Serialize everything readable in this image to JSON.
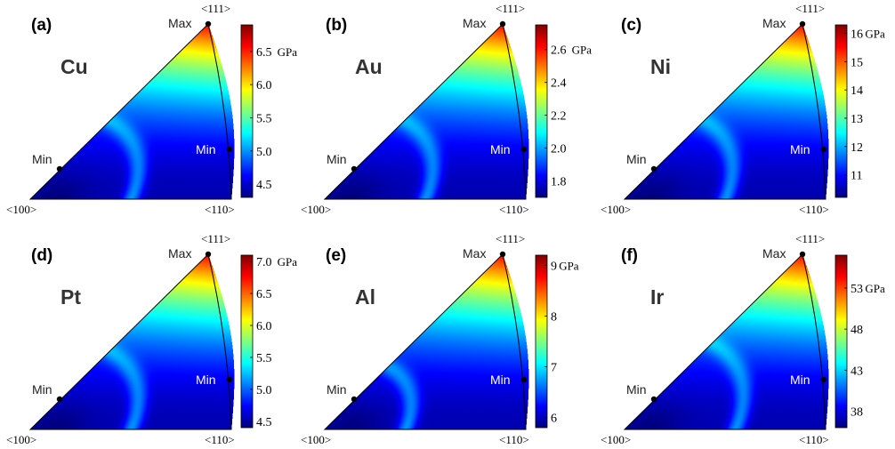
{
  "figure": {
    "dir_100": "<100>",
    "dir_110": "<110>",
    "dir_111": "<111>",
    "max_label": "Max",
    "min_label": "Min",
    "unit": "GPa",
    "colormap": [
      "#00007f",
      "#0000ff",
      "#007fff",
      "#00ffff",
      "#7fff7f",
      "#ffff00",
      "#ff7f00",
      "#ff0000",
      "#7f0000"
    ]
  },
  "chart_data": [
    {
      "type": "heatmap",
      "panel_label": "(a)",
      "element": "Cu",
      "range": [
        4.3,
        6.9
      ],
      "ticks": [
        4.5,
        5.0,
        5.5,
        6.0,
        6.5
      ],
      "tick_labels": [
        "4.5",
        "5.0",
        "5.5",
        "6.0",
        "6.5"
      ],
      "unit_at_tick": 4,
      "valley_position": 0.5
    },
    {
      "type": "heatmap",
      "panel_label": "(b)",
      "element": "Au",
      "range": [
        1.7,
        2.75
      ],
      "ticks": [
        1.8,
        2.0,
        2.2,
        2.4,
        2.6
      ],
      "tick_labels": [
        "1.8",
        "2.0",
        "2.2",
        "2.4",
        "2.6"
      ],
      "unit_at_tick": 4,
      "valley_position": 0.5
    },
    {
      "type": "heatmap",
      "panel_label": "(c)",
      "element": "Ni",
      "range": [
        10.2,
        16.3
      ],
      "ticks": [
        11,
        12,
        13,
        14,
        15,
        16
      ],
      "tick_labels": [
        "11",
        "12",
        "13",
        "14",
        "15",
        "16"
      ],
      "unit_at_tick": 5,
      "valley_position": 0.5
    },
    {
      "type": "heatmap",
      "panel_label": "(d)",
      "element": "Pt",
      "range": [
        4.4,
        7.1
      ],
      "ticks": [
        4.5,
        5.0,
        5.5,
        6.0,
        6.5,
        7.0
      ],
      "tick_labels": [
        "4.5",
        "5.0",
        "5.5",
        "6.0",
        "6.5",
        "7.0"
      ],
      "unit_at_tick": 5,
      "valley_position": 0.5
    },
    {
      "type": "heatmap",
      "panel_label": "(e)",
      "element": "Al",
      "range": [
        5.8,
        9.2
      ],
      "ticks": [
        6,
        7,
        8,
        9
      ],
      "tick_labels": [
        "6",
        "7",
        "8",
        "9"
      ],
      "unit_at_tick": 3,
      "valley_position": 0.4
    },
    {
      "type": "heatmap",
      "panel_label": "(f)",
      "element": "Ir",
      "range": [
        36,
        57
      ],
      "ticks": [
        38,
        43,
        48,
        53
      ],
      "tick_labels": [
        "38",
        "43",
        "48",
        "53"
      ],
      "unit_at_tick": 3,
      "valley_position": 0.55
    }
  ]
}
